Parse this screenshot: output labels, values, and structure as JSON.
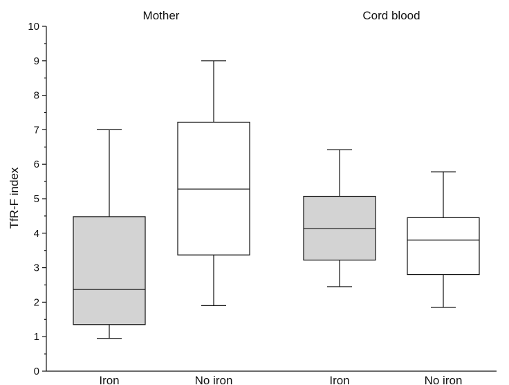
{
  "chart_data": {
    "type": "box",
    "ylabel": "TfR-F index",
    "ylim": [
      0,
      10
    ],
    "yticks": [
      0,
      1,
      2,
      3,
      4,
      5,
      6,
      7,
      8,
      9,
      10
    ],
    "grid": false,
    "groups": [
      {
        "label": "Mother",
        "categories": [
          "Iron",
          "No iron"
        ]
      },
      {
        "label": "Cord blood",
        "categories": [
          "Iron",
          "No iron"
        ]
      }
    ],
    "categories": [
      "Iron",
      "No iron",
      "Iron",
      "No iron"
    ],
    "boxes": [
      {
        "group": "Mother",
        "category": "Iron",
        "fill": "#d3d3d3",
        "whisker_low": 0.95,
        "q1": 1.35,
        "median": 2.37,
        "q3": 4.48,
        "whisker_high": 7.0
      },
      {
        "group": "Mother",
        "category": "No iron",
        "fill": "#ffffff",
        "whisker_low": 1.9,
        "q1": 3.37,
        "median": 5.28,
        "q3": 7.22,
        "whisker_high": 9.0
      },
      {
        "group": "Cord blood",
        "category": "Iron",
        "fill": "#d3d3d3",
        "whisker_low": 2.45,
        "q1": 3.22,
        "median": 4.13,
        "q3": 5.07,
        "whisker_high": 6.42
      },
      {
        "group": "Cord blood",
        "category": "No iron",
        "fill": "#ffffff",
        "whisker_low": 1.85,
        "q1": 2.8,
        "median": 3.8,
        "q3": 4.45,
        "whisker_high": 5.78
      }
    ]
  }
}
